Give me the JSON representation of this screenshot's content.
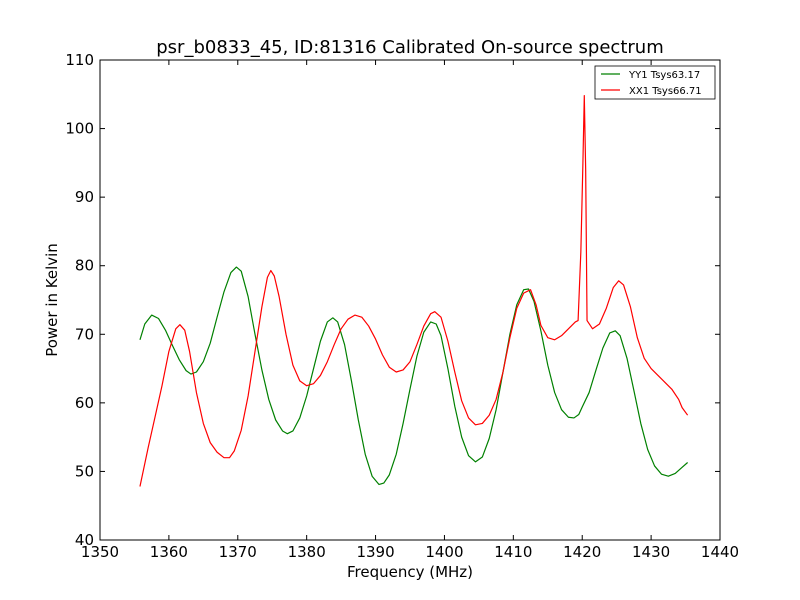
{
  "chart_data": {
    "type": "line",
    "title": "psr_b0833_45, ID:81316 Calibrated On-source spectrum",
    "xlabel": "Frequency (MHz)",
    "ylabel": "Power in Kelvin",
    "xlim": [
      1350,
      1440
    ],
    "ylim": [
      40,
      110
    ],
    "xticks": [
      1350,
      1360,
      1370,
      1380,
      1390,
      1400,
      1410,
      1420,
      1430,
      1440
    ],
    "yticks": [
      40,
      50,
      60,
      70,
      80,
      90,
      100,
      110
    ],
    "grid": false,
    "legend_position": "top-right",
    "series": [
      {
        "name": "YY1 Tsys63.17",
        "color": "#008000",
        "points": [
          [
            1355.8,
            69.2
          ],
          [
            1356.5,
            71.5
          ],
          [
            1357.5,
            72.8
          ],
          [
            1358.5,
            72.3
          ],
          [
            1359.5,
            70.6
          ],
          [
            1360.5,
            68.4
          ],
          [
            1361.5,
            66.3
          ],
          [
            1362.5,
            64.7
          ],
          [
            1363.2,
            64.2
          ],
          [
            1364.0,
            64.5
          ],
          [
            1365.0,
            66.0
          ],
          [
            1366.0,
            68.7
          ],
          [
            1367.0,
            72.5
          ],
          [
            1368.0,
            76.2
          ],
          [
            1369.0,
            79.0
          ],
          [
            1369.8,
            79.8
          ],
          [
            1370.5,
            79.2
          ],
          [
            1371.5,
            75.5
          ],
          [
            1372.5,
            70.0
          ],
          [
            1373.5,
            64.8
          ],
          [
            1374.5,
            60.5
          ],
          [
            1375.5,
            57.5
          ],
          [
            1376.5,
            55.9
          ],
          [
            1377.2,
            55.5
          ],
          [
            1378.0,
            55.9
          ],
          [
            1379.0,
            57.8
          ],
          [
            1380.0,
            61.0
          ],
          [
            1381.0,
            65.0
          ],
          [
            1382.0,
            69.0
          ],
          [
            1383.0,
            71.8
          ],
          [
            1383.8,
            72.4
          ],
          [
            1384.5,
            71.8
          ],
          [
            1385.5,
            68.5
          ],
          [
            1386.5,
            63.2
          ],
          [
            1387.5,
            57.5
          ],
          [
            1388.5,
            52.5
          ],
          [
            1389.5,
            49.3
          ],
          [
            1390.5,
            48.1
          ],
          [
            1391.2,
            48.3
          ],
          [
            1392.0,
            49.5
          ],
          [
            1393.0,
            52.5
          ],
          [
            1394.0,
            57.0
          ],
          [
            1395.0,
            62.0
          ],
          [
            1396.0,
            66.8
          ],
          [
            1397.0,
            70.3
          ],
          [
            1398.0,
            71.8
          ],
          [
            1398.8,
            71.5
          ],
          [
            1399.5,
            69.8
          ],
          [
            1400.5,
            65.0
          ],
          [
            1401.5,
            59.5
          ],
          [
            1402.5,
            55.0
          ],
          [
            1403.5,
            52.3
          ],
          [
            1404.5,
            51.4
          ],
          [
            1405.5,
            52.1
          ],
          [
            1406.5,
            54.8
          ],
          [
            1407.5,
            59.0
          ],
          [
            1408.5,
            64.5
          ],
          [
            1409.5,
            70.0
          ],
          [
            1410.5,
            74.3
          ],
          [
            1411.5,
            76.5
          ],
          [
            1412.2,
            76.6
          ],
          [
            1413.0,
            74.8
          ],
          [
            1414.0,
            70.5
          ],
          [
            1415.0,
            65.5
          ],
          [
            1416.0,
            61.5
          ],
          [
            1417.0,
            59.0
          ],
          [
            1418.0,
            57.9
          ],
          [
            1418.8,
            57.8
          ],
          [
            1419.5,
            58.3
          ],
          [
            1420.0,
            59.4
          ],
          [
            1421.0,
            61.5
          ],
          [
            1422.0,
            64.8
          ],
          [
            1423.0,
            68.0
          ],
          [
            1424.0,
            70.2
          ],
          [
            1424.8,
            70.5
          ],
          [
            1425.5,
            69.8
          ],
          [
            1426.5,
            66.5
          ],
          [
            1427.5,
            61.8
          ],
          [
            1428.5,
            57.0
          ],
          [
            1429.5,
            53.2
          ],
          [
            1430.5,
            50.8
          ],
          [
            1431.5,
            49.6
          ],
          [
            1432.5,
            49.3
          ],
          [
            1433.5,
            49.7
          ],
          [
            1434.5,
            50.6
          ],
          [
            1435.3,
            51.3
          ]
        ]
      },
      {
        "name": "XX1 Tsys66.71",
        "color": "#ff0000",
        "points": [
          [
            1355.8,
            47.8
          ],
          [
            1357.0,
            53.5
          ],
          [
            1358.0,
            58.0
          ],
          [
            1359.0,
            62.5
          ],
          [
            1360.0,
            67.5
          ],
          [
            1361.0,
            70.8
          ],
          [
            1361.6,
            71.4
          ],
          [
            1362.3,
            70.6
          ],
          [
            1363.0,
            67.5
          ],
          [
            1364.0,
            61.5
          ],
          [
            1365.0,
            57.0
          ],
          [
            1366.0,
            54.2
          ],
          [
            1367.0,
            52.8
          ],
          [
            1368.0,
            52.0
          ],
          [
            1368.8,
            52.0
          ],
          [
            1369.5,
            53.0
          ],
          [
            1370.5,
            56.0
          ],
          [
            1371.5,
            61.0
          ],
          [
            1372.5,
            67.5
          ],
          [
            1373.5,
            74.0
          ],
          [
            1374.3,
            78.3
          ],
          [
            1374.8,
            79.3
          ],
          [
            1375.3,
            78.5
          ],
          [
            1376.0,
            75.5
          ],
          [
            1377.0,
            70.0
          ],
          [
            1378.0,
            65.5
          ],
          [
            1379.0,
            63.2
          ],
          [
            1380.0,
            62.5
          ],
          [
            1381.0,
            62.8
          ],
          [
            1382.0,
            64.0
          ],
          [
            1383.0,
            66.0
          ],
          [
            1384.0,
            68.5
          ],
          [
            1385.0,
            70.8
          ],
          [
            1386.0,
            72.2
          ],
          [
            1387.0,
            72.8
          ],
          [
            1388.0,
            72.5
          ],
          [
            1389.0,
            71.2
          ],
          [
            1390.0,
            69.3
          ],
          [
            1391.0,
            67.0
          ],
          [
            1392.0,
            65.2
          ],
          [
            1393.0,
            64.5
          ],
          [
            1394.0,
            64.8
          ],
          [
            1395.0,
            66.0
          ],
          [
            1396.0,
            68.5
          ],
          [
            1397.0,
            71.2
          ],
          [
            1398.0,
            73.0
          ],
          [
            1398.6,
            73.3
          ],
          [
            1399.5,
            72.5
          ],
          [
            1400.5,
            69.0
          ],
          [
            1401.5,
            64.5
          ],
          [
            1402.5,
            60.3
          ],
          [
            1403.5,
            57.8
          ],
          [
            1404.5,
            56.8
          ],
          [
            1405.5,
            57.0
          ],
          [
            1406.5,
            58.2
          ],
          [
            1407.5,
            60.5
          ],
          [
            1408.5,
            64.5
          ],
          [
            1409.5,
            69.5
          ],
          [
            1410.5,
            73.8
          ],
          [
            1411.5,
            76.0
          ],
          [
            1412.5,
            76.5
          ],
          [
            1413.3,
            74.3
          ],
          [
            1414.0,
            71.3
          ],
          [
            1415.0,
            69.5
          ],
          [
            1416.0,
            69.2
          ],
          [
            1417.0,
            69.8
          ],
          [
            1418.0,
            70.8
          ],
          [
            1419.0,
            71.8
          ],
          [
            1419.4,
            72.0
          ],
          [
            1419.8,
            82.0
          ],
          [
            1420.1,
            95.0
          ],
          [
            1420.3,
            104.8
          ],
          [
            1420.5,
            94.0
          ],
          [
            1420.7,
            72.0
          ],
          [
            1421.5,
            70.8
          ],
          [
            1422.5,
            71.5
          ],
          [
            1423.5,
            73.8
          ],
          [
            1424.5,
            76.8
          ],
          [
            1425.3,
            77.8
          ],
          [
            1426.0,
            77.2
          ],
          [
            1427.0,
            74.0
          ],
          [
            1428.0,
            69.5
          ],
          [
            1429.0,
            66.5
          ],
          [
            1430.0,
            65.0
          ],
          [
            1431.0,
            64.0
          ],
          [
            1432.0,
            63.0
          ],
          [
            1433.0,
            62.0
          ],
          [
            1434.0,
            60.5
          ],
          [
            1434.5,
            59.3
          ],
          [
            1435.3,
            58.2
          ]
        ]
      }
    ]
  }
}
